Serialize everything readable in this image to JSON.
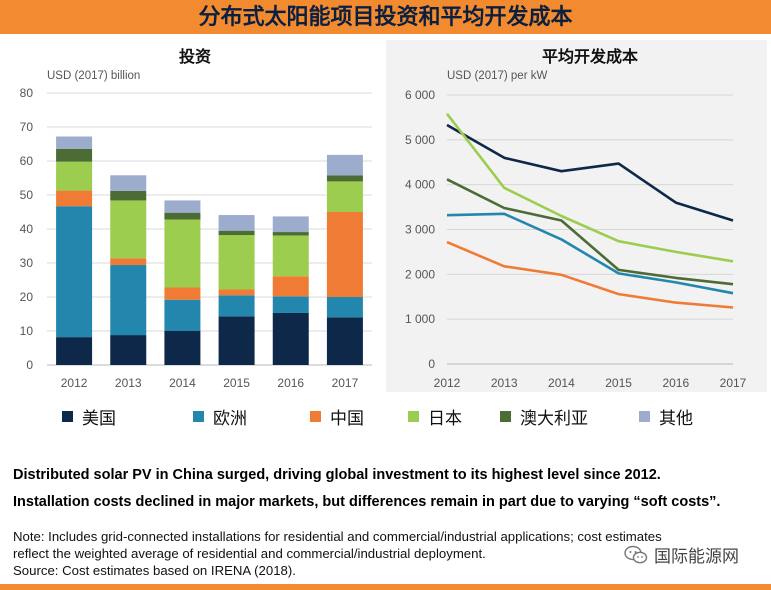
{
  "page_title": "分布式太阳能项目投资和平均开发成本",
  "legend": [
    {
      "label": "美国",
      "color": "#0e2849"
    },
    {
      "label": "欧洲",
      "color": "#2387ad"
    },
    {
      "label": "中国",
      "color": "#f07b34"
    },
    {
      "label": "日本",
      "color": "#9ccd4e"
    },
    {
      "label": "澳大利亚",
      "color": "#4d6b35"
    },
    {
      "label": "其他",
      "color": "#9caccc"
    }
  ],
  "chart_data": [
    {
      "type": "bar",
      "stacked": true,
      "title": "投资",
      "ylabel": "USD (2017) billion",
      "categories": [
        "2012",
        "2013",
        "2014",
        "2015",
        "2016",
        "2017"
      ],
      "ylim": [
        0,
        80
      ],
      "yticks": [
        "0",
        "10",
        "20",
        "30",
        "40",
        "50",
        "60",
        "70",
        "80"
      ],
      "grid": true,
      "series": [
        {
          "name": "美国",
          "color": "#0e2849",
          "values": [
            8.2,
            8.8,
            10.0,
            14.3,
            15.3,
            14.0
          ]
        },
        {
          "name": "欧洲",
          "color": "#2387ad",
          "values": [
            38.5,
            20.6,
            9.2,
            6.2,
            4.9,
            6.0
          ]
        },
        {
          "name": "中国",
          "color": "#f07b34",
          "values": [
            4.6,
            2.0,
            3.6,
            1.7,
            5.9,
            25.0
          ]
        },
        {
          "name": "日本",
          "color": "#9ccd4e",
          "values": [
            8.5,
            17.0,
            20.0,
            16.0,
            12.0,
            9.0
          ]
        },
        {
          "name": "澳大利亚",
          "color": "#4d6b35",
          "values": [
            3.8,
            2.8,
            2.0,
            1.3,
            1.0,
            1.8
          ]
        },
        {
          "name": "其他",
          "color": "#9caccc",
          "values": [
            3.6,
            4.6,
            3.6,
            4.6,
            4.6,
            6.0
          ]
        }
      ]
    },
    {
      "type": "line",
      "title": "平均开发成本",
      "ylabel": "USD (2017) per kW",
      "x": [
        "2012",
        "2013",
        "2014",
        "2015",
        "2016",
        "2017"
      ],
      "ylim": [
        0,
        6000
      ],
      "yticks": [
        "0",
        "1 000",
        "2 000",
        "3 000",
        "4 000",
        "5 000",
        "6 000"
      ],
      "grid": true,
      "series": [
        {
          "name": "美国",
          "color": "#0e2849",
          "values": [
            5330,
            4600,
            4300,
            4470,
            3600,
            3200
          ]
        },
        {
          "name": "欧洲",
          "color": "#2387ad",
          "values": [
            3320,
            3350,
            2780,
            2020,
            1820,
            1580
          ]
        },
        {
          "name": "中国",
          "color": "#f07b34",
          "values": [
            2720,
            2180,
            1990,
            1560,
            1370,
            1260
          ]
        },
        {
          "name": "日本",
          "color": "#9ccd4e",
          "values": [
            5580,
            3930,
            3300,
            2740,
            2500,
            2290
          ]
        },
        {
          "name": "澳大利亚",
          "color": "#4d6b35",
          "values": [
            4120,
            3480,
            3200,
            2100,
            1920,
            1780
          ]
        }
      ]
    }
  ],
  "headline_1": "Distributed solar PV in China surged, driving global investment to its highest level since 2012.",
  "headline_2": "Installation costs declined in major markets, but differences remain in part due to varying “soft costs”.",
  "note_line_1": "Note: Includes grid-connected installations for residential and commercial/industrial applications; cost estimates",
  "note_line_2": "reflect the weighted average of residential and commercial/industrial deployment.",
  "source": "Source: Cost estimates based on IRENA (2018).",
  "watermark": "国际能源网",
  "watermark_icon": "wechat-icon"
}
